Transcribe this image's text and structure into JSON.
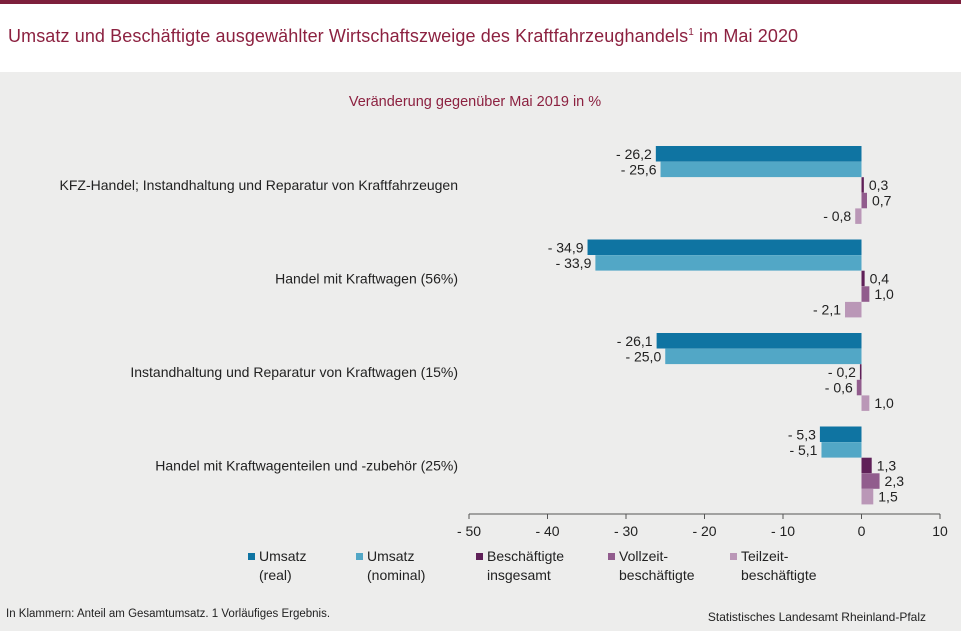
{
  "header": {
    "title": "Umsatz und Beschäftigte ausgewählter Wirtschaftszweige des Kraftfahrzeughandels",
    "title_sup": "1",
    "title_suffix": " im Mai 2020"
  },
  "chart_data": {
    "type": "bar",
    "orientation": "horizontal",
    "subtitle": "Veränderung gegenüber Mai 2019 in %",
    "categories": [
      "KFZ-Handel; Instandhaltung und Reparatur von Kraftfahrzeugen",
      "Handel mit Kraftwagen (56%)",
      "Instandhaltung und Reparatur von Kraftwagen (15%)",
      "Handel mit Kraftwagenteilen und -zubehör (25%)"
    ],
    "series": [
      {
        "name": "Umsatz (real)",
        "legend_lines": [
          "Umsatz",
          "(real)"
        ],
        "color": "#0f74a2",
        "values": [
          -26.2,
          -34.9,
          -26.1,
          -5.3
        ],
        "labels": [
          "- 26,2",
          "- 34,9",
          "- 26,1",
          "- 5,3"
        ]
      },
      {
        "name": "Umsatz (nominal)",
        "legend_lines": [
          "Umsatz",
          "(nominal)"
        ],
        "color": "#52a7c6",
        "values": [
          -25.6,
          -33.9,
          -25.0,
          -5.1
        ],
        "labels": [
          "- 25,6",
          "- 33,9",
          "- 25,0",
          "- 5,1"
        ]
      },
      {
        "name": "Beschäftigte insgesamt",
        "legend_lines": [
          "Beschäftigte",
          "insgesamt"
        ],
        "color": "#5f2058",
        "values": [
          0.3,
          0.4,
          -0.2,
          1.3
        ],
        "labels": [
          "0,3",
          "0,4",
          "- 0,2",
          "1,3"
        ]
      },
      {
        "name": "Vollzeit-beschäftigte",
        "legend_lines": [
          "Vollzeit-",
          "beschäftigte"
        ],
        "color": "#915c8d",
        "values": [
          0.7,
          1.0,
          -0.6,
          2.3
        ],
        "labels": [
          "0,7",
          "1,0",
          "- 0,6",
          "2,3"
        ]
      },
      {
        "name": "Teilzeit-beschäftigte",
        "legend_lines": [
          "Teilzeit-",
          "beschäftigte"
        ],
        "color": "#ba97b7",
        "values": [
          -0.8,
          -2.1,
          1.0,
          1.5
        ],
        "labels": [
          "- 0,8",
          "- 2,1",
          "1,0",
          "1,5"
        ]
      }
    ],
    "xlim": [
      -50,
      10
    ],
    "xticks": [
      -50,
      -40,
      -30,
      -20,
      -10,
      0,
      10
    ],
    "xtick_labels": [
      "- 50",
      "- 40",
      "- 30",
      "- 20",
      "- 10",
      "0",
      "10"
    ],
    "grid": false,
    "legend_position": "bottom"
  },
  "footer": {
    "note": "In Klammern: Anteil am Gesamtumsatz. 1 Vorläufiges  Ergebnis.",
    "source": "Statistisches Landesamt Rheinland-Pfalz"
  }
}
